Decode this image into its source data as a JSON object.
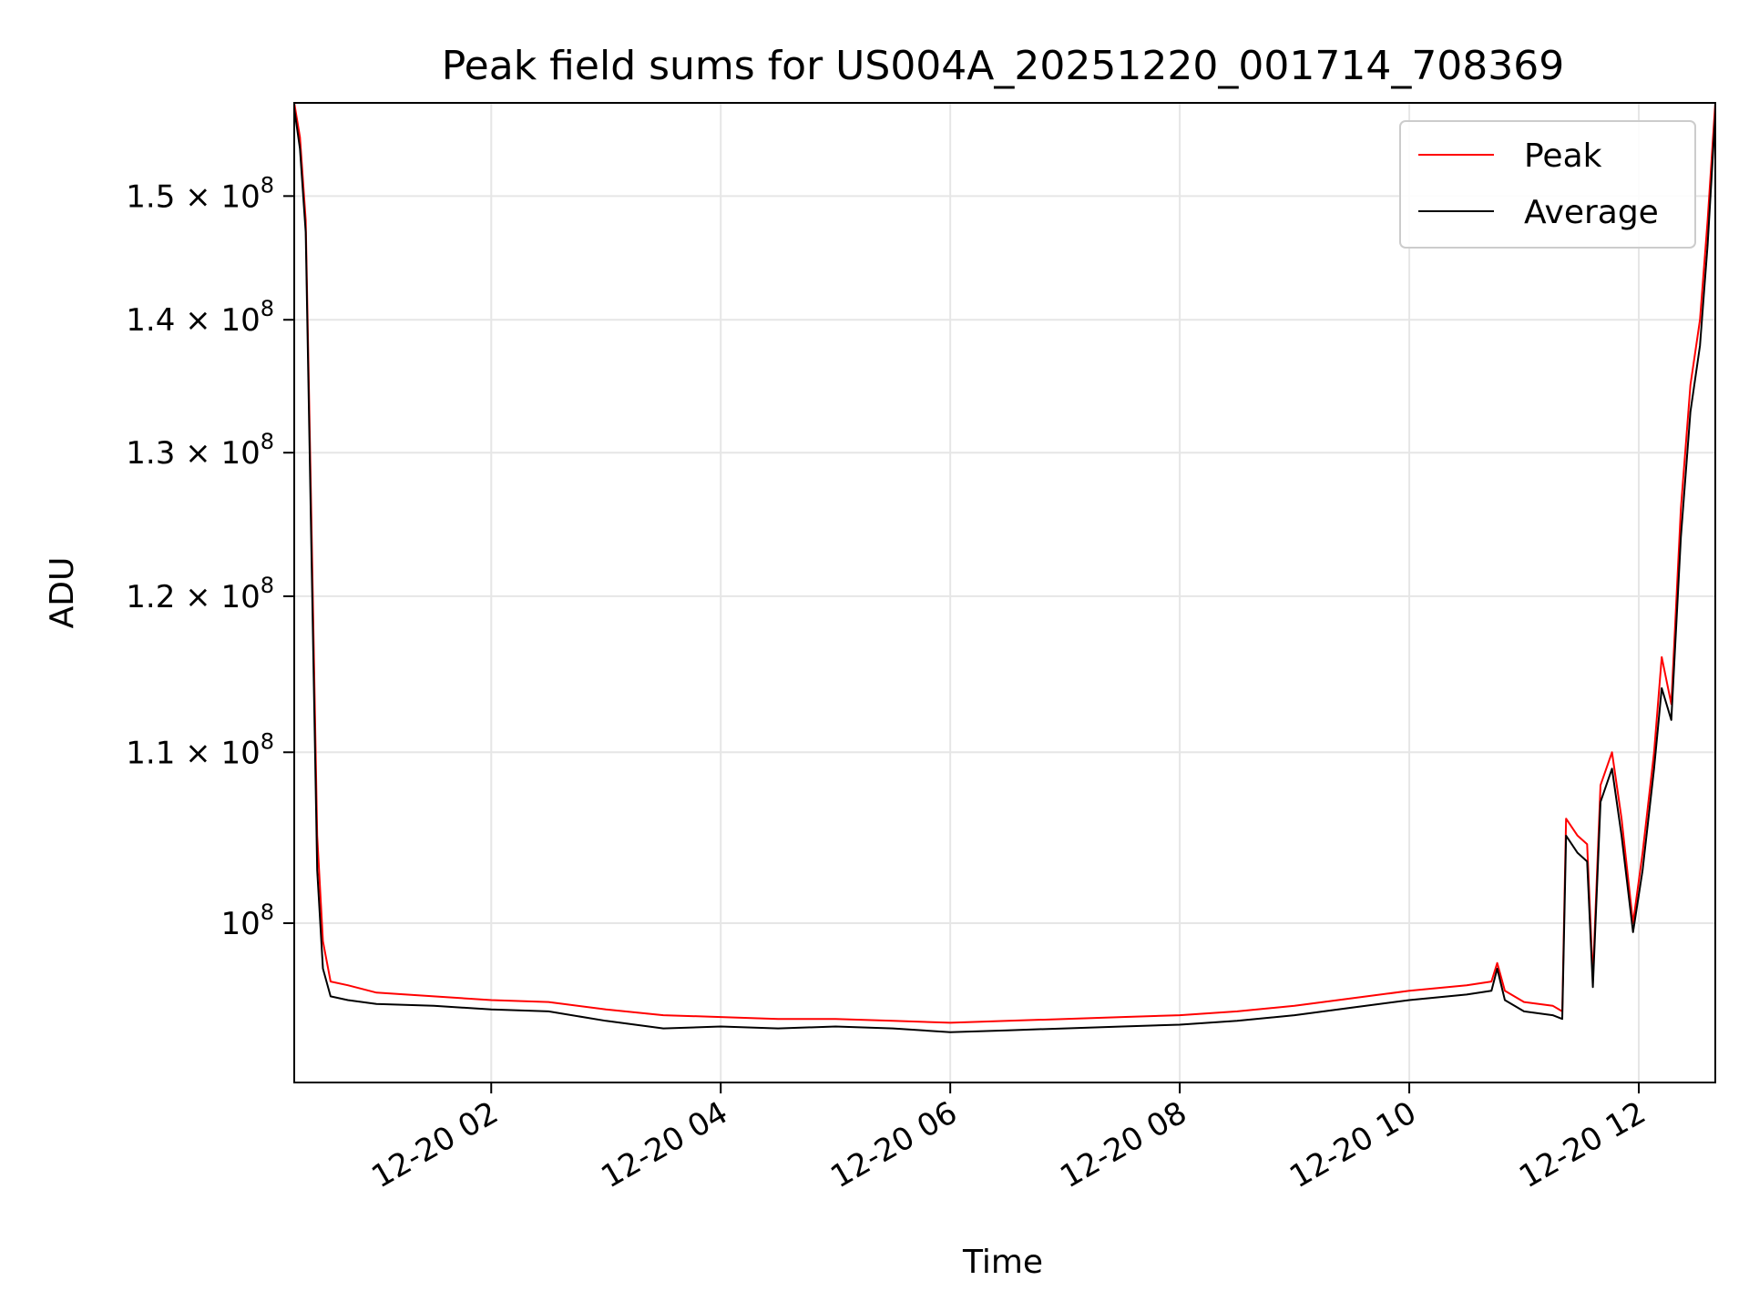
{
  "chart_data": {
    "type": "line",
    "title": "Peak field sums for US004A_20251220_001714_708369",
    "xlabel": "Time",
    "ylabel": "ADU",
    "yscale": "log",
    "grid": true,
    "legend_position": "top-right",
    "xlim": [
      "2025-12-20 00:17",
      "2025-12-20 12:40"
    ],
    "ylim": [
      91500000,
      158000000
    ],
    "x_ticks": [
      {
        "value": "2025-12-20 02:00",
        "label": "12-20 02"
      },
      {
        "value": "2025-12-20 04:00",
        "label": "12-20 04"
      },
      {
        "value": "2025-12-20 06:00",
        "label": "12-20 06"
      },
      {
        "value": "2025-12-20 08:00",
        "label": "12-20 08"
      },
      {
        "value": "2025-12-20 10:00",
        "label": "12-20 10"
      },
      {
        "value": "2025-12-20 12:00",
        "label": "12-20 12"
      }
    ],
    "y_ticks": [
      {
        "value": 100000000,
        "mantissa": "",
        "exponent": "8"
      },
      {
        "value": 110000000,
        "mantissa": "1.1",
        "exponent": "8"
      },
      {
        "value": 120000000,
        "mantissa": "1.2",
        "exponent": "8"
      },
      {
        "value": 130000000,
        "mantissa": "1.3",
        "exponent": "8"
      },
      {
        "value": 140000000,
        "mantissa": "1.4",
        "exponent": "8"
      },
      {
        "value": 150000000,
        "mantissa": "1.5",
        "exponent": "8"
      }
    ],
    "series": [
      {
        "name": "Peak",
        "color": "#ff0000",
        "points": [
          [
            "2025-12-20 00:17",
            158000000
          ],
          [
            "2025-12-20 00:20",
            155000000
          ],
          [
            "2025-12-20 00:23",
            148000000
          ],
          [
            "2025-12-20 00:26",
            125000000
          ],
          [
            "2025-12-20 00:29",
            105000000
          ],
          [
            "2025-12-20 00:32",
            99000000
          ],
          [
            "2025-12-20 00:36",
            96800000
          ],
          [
            "2025-12-20 00:45",
            96600000
          ],
          [
            "2025-12-20 01:00",
            96200000
          ],
          [
            "2025-12-20 01:30",
            96000000
          ],
          [
            "2025-12-20 02:00",
            95800000
          ],
          [
            "2025-12-20 02:30",
            95700000
          ],
          [
            "2025-12-20 03:00",
            95300000
          ],
          [
            "2025-12-20 03:30",
            95000000
          ],
          [
            "2025-12-20 04:00",
            94900000
          ],
          [
            "2025-12-20 04:30",
            94800000
          ],
          [
            "2025-12-20 05:00",
            94800000
          ],
          [
            "2025-12-20 05:30",
            94700000
          ],
          [
            "2025-12-20 06:00",
            94600000
          ],
          [
            "2025-12-20 06:30",
            94700000
          ],
          [
            "2025-12-20 07:00",
            94800000
          ],
          [
            "2025-12-20 07:30",
            94900000
          ],
          [
            "2025-12-20 08:00",
            95000000
          ],
          [
            "2025-12-20 08:30",
            95200000
          ],
          [
            "2025-12-20 09:00",
            95500000
          ],
          [
            "2025-12-20 09:30",
            95900000
          ],
          [
            "2025-12-20 10:00",
            96300000
          ],
          [
            "2025-12-20 10:30",
            96600000
          ],
          [
            "2025-12-20 10:43",
            96800000
          ],
          [
            "2025-12-20 10:46",
            97800000
          ],
          [
            "2025-12-20 10:50",
            96300000
          ],
          [
            "2025-12-20 11:00",
            95700000
          ],
          [
            "2025-12-20 11:15",
            95500000
          ],
          [
            "2025-12-20 11:20",
            95200000
          ],
          [
            "2025-12-20 11:22",
            106000000
          ],
          [
            "2025-12-20 11:28",
            105000000
          ],
          [
            "2025-12-20 11:33",
            104500000
          ],
          [
            "2025-12-20 11:36",
            97000000
          ],
          [
            "2025-12-20 11:40",
            108000000
          ],
          [
            "2025-12-20 11:46",
            110000000
          ],
          [
            "2025-12-20 11:51",
            106000000
          ],
          [
            "2025-12-20 11:57",
            100000000
          ],
          [
            "2025-12-20 12:02",
            104000000
          ],
          [
            "2025-12-20 12:08",
            110000000
          ],
          [
            "2025-12-20 12:12",
            116000000
          ],
          [
            "2025-12-20 12:17",
            113000000
          ],
          [
            "2025-12-20 12:22",
            126000000
          ],
          [
            "2025-12-20 12:27",
            135000000
          ],
          [
            "2025-12-20 12:32",
            140000000
          ],
          [
            "2025-12-20 12:36",
            148000000
          ],
          [
            "2025-12-20 12:40",
            158000000
          ]
        ]
      },
      {
        "name": "Average",
        "color": "#000000",
        "points": [
          [
            "2025-12-20 00:17",
            157500000
          ],
          [
            "2025-12-20 00:20",
            154000000
          ],
          [
            "2025-12-20 00:23",
            147000000
          ],
          [
            "2025-12-20 00:26",
            123000000
          ],
          [
            "2025-12-20 00:29",
            103000000
          ],
          [
            "2025-12-20 00:32",
            97500000
          ],
          [
            "2025-12-20 00:36",
            96000000
          ],
          [
            "2025-12-20 00:45",
            95800000
          ],
          [
            "2025-12-20 01:00",
            95600000
          ],
          [
            "2025-12-20 01:30",
            95500000
          ],
          [
            "2025-12-20 02:00",
            95300000
          ],
          [
            "2025-12-20 02:30",
            95200000
          ],
          [
            "2025-12-20 03:00",
            94700000
          ],
          [
            "2025-12-20 03:30",
            94300000
          ],
          [
            "2025-12-20 04:00",
            94400000
          ],
          [
            "2025-12-20 04:30",
            94300000
          ],
          [
            "2025-12-20 05:00",
            94400000
          ],
          [
            "2025-12-20 05:30",
            94300000
          ],
          [
            "2025-12-20 06:00",
            94100000
          ],
          [
            "2025-12-20 06:30",
            94200000
          ],
          [
            "2025-12-20 07:00",
            94300000
          ],
          [
            "2025-12-20 07:30",
            94400000
          ],
          [
            "2025-12-20 08:00",
            94500000
          ],
          [
            "2025-12-20 08:30",
            94700000
          ],
          [
            "2025-12-20 09:00",
            95000000
          ],
          [
            "2025-12-20 09:30",
            95400000
          ],
          [
            "2025-12-20 10:00",
            95800000
          ],
          [
            "2025-12-20 10:30",
            96100000
          ],
          [
            "2025-12-20 10:43",
            96300000
          ],
          [
            "2025-12-20 10:46",
            97500000
          ],
          [
            "2025-12-20 10:50",
            95800000
          ],
          [
            "2025-12-20 11:00",
            95200000
          ],
          [
            "2025-12-20 11:15",
            95000000
          ],
          [
            "2025-12-20 11:20",
            94800000
          ],
          [
            "2025-12-20 11:22",
            105000000
          ],
          [
            "2025-12-20 11:28",
            104000000
          ],
          [
            "2025-12-20 11:33",
            103500000
          ],
          [
            "2025-12-20 11:36",
            96500000
          ],
          [
            "2025-12-20 11:40",
            107000000
          ],
          [
            "2025-12-20 11:46",
            109000000
          ],
          [
            "2025-12-20 11:51",
            105000000
          ],
          [
            "2025-12-20 11:57",
            99500000
          ],
          [
            "2025-12-20 12:02",
            103000000
          ],
          [
            "2025-12-20 12:08",
            109000000
          ],
          [
            "2025-12-20 12:12",
            114000000
          ],
          [
            "2025-12-20 12:17",
            112000000
          ],
          [
            "2025-12-20 12:22",
            124000000
          ],
          [
            "2025-12-20 12:27",
            133000000
          ],
          [
            "2025-12-20 12:32",
            138000000
          ],
          [
            "2025-12-20 12:36",
            146000000
          ],
          [
            "2025-12-20 12:40",
            157000000
          ]
        ]
      }
    ]
  }
}
